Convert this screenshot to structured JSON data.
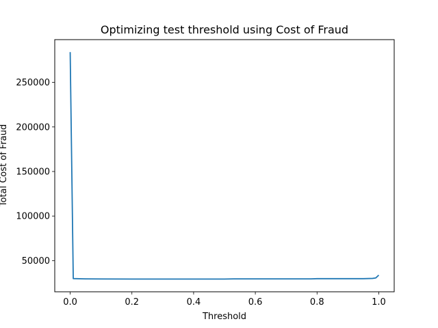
{
  "chart_data": {
    "type": "line",
    "title": "Optimizing test threshold using Cost of Fraud",
    "xlabel": "Threshold",
    "ylabel": "Total Cost of Fraud",
    "xlim": [
      -0.05,
      1.05
    ],
    "ylim": [
      15000,
      298000
    ],
    "xticks": [
      0.0,
      0.2,
      0.4,
      0.6,
      0.8,
      1.0
    ],
    "xtick_labels": [
      "0.0",
      "0.2",
      "0.4",
      "0.6",
      "0.8",
      "1.0"
    ],
    "yticks": [
      50000,
      100000,
      150000,
      200000,
      250000
    ],
    "ytick_labels": [
      "50000",
      "100000",
      "150000",
      "200000",
      "250000"
    ],
    "grid": false,
    "line_color": "#1f77b4",
    "series": [
      {
        "x": [
          0.0,
          0.01,
          0.05,
          0.1,
          0.2,
          0.3,
          0.4,
          0.5,
          0.53,
          0.6,
          0.7,
          0.78,
          0.8,
          0.9,
          0.95,
          0.98,
          0.99,
          1.0
        ],
        "y": [
          284000,
          29800,
          29500,
          29400,
          29300,
          29300,
          29300,
          29300,
          29500,
          29500,
          29500,
          29500,
          29700,
          29700,
          29700,
          30000,
          30500,
          33700
        ]
      }
    ]
  }
}
